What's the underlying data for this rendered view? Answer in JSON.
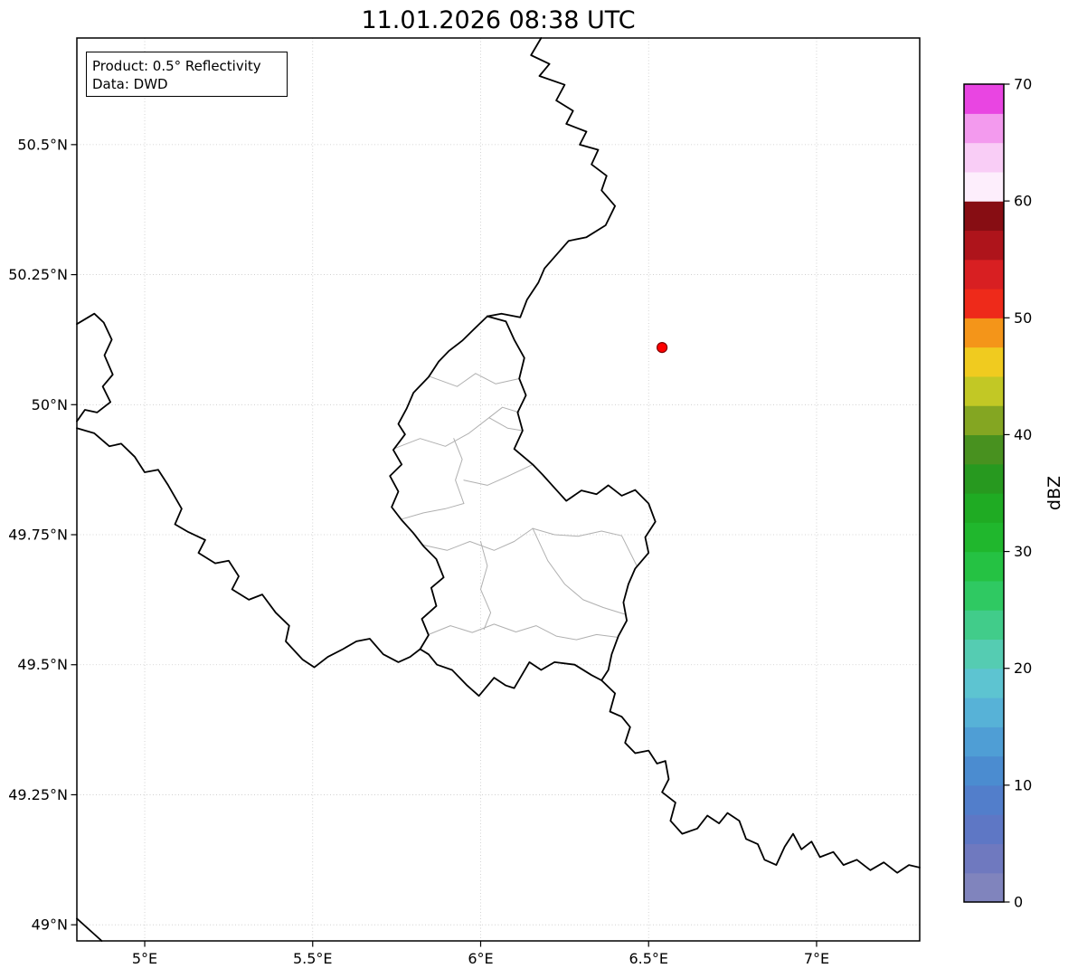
{
  "title": "11.01.2026 08:38 UTC",
  "annotation": {
    "line1": "Product: 0.5° Reflectivity",
    "line2": "Data: DWD"
  },
  "colorbar": {
    "label": "dBZ",
    "min": 0,
    "max": 70,
    "ticks": [
      0,
      10,
      20,
      30,
      40,
      50,
      60,
      70
    ],
    "segment_step_dbz": 2.5,
    "segment_colors": [
      "#8084bd",
      "#6f79bf",
      "#5e77c5",
      "#527ecb",
      "#4b8cd0",
      "#4f9ed5",
      "#57b2d7",
      "#5dc4d1",
      "#55ccb2",
      "#41cc8a",
      "#2fc962",
      "#25c243",
      "#20b72d",
      "#1fab23",
      "#27991f",
      "#48911f",
      "#84a622",
      "#c2c825",
      "#f0cb1f",
      "#f49519",
      "#ee2a1a",
      "#d81f22",
      "#ae141b",
      "#870d13",
      "#fdeefc",
      "#f9cdf6",
      "#f39aee",
      "#e945e2"
    ]
  },
  "map": {
    "extent": {
      "lon_min": 4.798,
      "lon_max": 7.307,
      "lat_min": 48.969,
      "lat_max": 50.705
    },
    "x_ticks": [
      {
        "value": 5.0,
        "label": "5°E"
      },
      {
        "value": 5.5,
        "label": "5.5°E"
      },
      {
        "value": 6.0,
        "label": "6°E"
      },
      {
        "value": 6.5,
        "label": "6.5°E"
      },
      {
        "value": 7.0,
        "label": "7°E"
      }
    ],
    "y_ticks": [
      {
        "value": 50.5,
        "label": "50.5°N"
      },
      {
        "value": 50.25,
        "label": "50.25°N"
      },
      {
        "value": 50.0,
        "label": "50°N"
      },
      {
        "value": 49.75,
        "label": "49.75°N"
      },
      {
        "value": 49.5,
        "label": "49.5°N"
      },
      {
        "value": 49.25,
        "label": "49.25°N"
      },
      {
        "value": 49.0,
        "label": "49°N"
      }
    ],
    "radar_marker": {
      "lon": 6.54,
      "lat": 50.11,
      "color": "#ff0000",
      "edge_color": "#7f0000"
    },
    "borders": {
      "country_lines": [
        {
          "name": "belgium-germany",
          "points": [
            [
              6.18,
              50.705
            ],
            [
              6.15,
              50.672
            ],
            [
              6.205,
              50.655
            ],
            [
              6.175,
              50.632
            ],
            [
              6.25,
              50.615
            ],
            [
              6.225,
              50.585
            ],
            [
              6.275,
              50.565
            ],
            [
              6.255,
              50.54
            ],
            [
              6.315,
              50.525
            ],
            [
              6.295,
              50.5
            ],
            [
              6.35,
              50.49
            ],
            [
              6.33,
              50.462
            ],
            [
              6.375,
              50.44
            ],
            [
              6.36,
              50.412
            ],
            [
              6.4,
              50.382
            ],
            [
              6.372,
              50.345
            ],
            [
              6.315,
              50.322
            ],
            [
              6.262,
              50.315
            ],
            [
              6.19,
              50.262
            ],
            [
              6.172,
              50.235
            ],
            [
              6.138,
              50.202
            ],
            [
              6.118,
              50.168
            ],
            [
              6.062,
              50.175
            ],
            [
              6.02,
              50.17
            ]
          ]
        },
        {
          "name": "luxembourg",
          "points": [
            [
              6.02,
              50.17
            ],
            [
              6.075,
              50.16
            ],
            [
              6.1,
              50.125
            ],
            [
              6.13,
              50.09
            ],
            [
              6.115,
              50.05
            ],
            [
              6.135,
              50.018
            ],
            [
              6.11,
              49.985
            ],
            [
              6.125,
              49.95
            ],
            [
              6.1,
              49.915
            ],
            [
              6.155,
              49.885
            ],
            [
              6.185,
              49.865
            ],
            [
              6.22,
              49.84
            ],
            [
              6.255,
              49.815
            ],
            [
              6.3,
              49.835
            ],
            [
              6.345,
              49.828
            ],
            [
              6.38,
              49.845
            ],
            [
              6.42,
              49.825
            ],
            [
              6.46,
              49.836
            ],
            [
              6.5,
              49.81
            ],
            [
              6.52,
              49.775
            ],
            [
              6.49,
              49.745
            ],
            [
              6.5,
              49.715
            ],
            [
              6.46,
              49.685
            ],
            [
              6.44,
              49.655
            ],
            [
              6.425,
              49.62
            ],
            [
              6.435,
              49.585
            ],
            [
              6.41,
              49.555
            ],
            [
              6.39,
              49.52
            ],
            [
              6.38,
              49.49
            ],
            [
              6.36,
              49.47
            ],
            [
              6.33,
              49.48
            ],
            [
              6.28,
              49.5
            ],
            [
              6.22,
              49.505
            ],
            [
              6.18,
              49.49
            ],
            [
              6.145,
              49.505
            ],
            [
              6.1,
              49.455
            ],
            [
              6.075,
              49.46
            ],
            [
              6.04,
              49.475
            ],
            [
              5.995,
              49.44
            ],
            [
              5.96,
              49.46
            ],
            [
              5.915,
              49.49
            ],
            [
              5.87,
              49.5
            ],
            [
              5.845,
              49.52
            ],
            [
              5.82,
              49.53
            ],
            [
              5.845,
              49.557
            ],
            [
              5.825,
              49.588
            ],
            [
              5.868,
              49.613
            ],
            [
              5.853,
              49.648
            ],
            [
              5.89,
              49.668
            ],
            [
              5.868,
              49.703
            ],
            [
              5.83,
              49.728
            ],
            [
              5.8,
              49.753
            ],
            [
              5.765,
              49.778
            ],
            [
              5.735,
              49.803
            ],
            [
              5.755,
              49.833
            ],
            [
              5.73,
              49.863
            ],
            [
              5.765,
              49.885
            ],
            [
              5.74,
              49.913
            ],
            [
              5.775,
              49.943
            ],
            [
              5.755,
              49.963
            ],
            [
              5.78,
              49.993
            ],
            [
              5.8,
              50.023
            ],
            [
              5.845,
              50.053
            ],
            [
              5.875,
              50.083
            ],
            [
              5.905,
              50.103
            ],
            [
              5.945,
              50.123
            ],
            [
              5.98,
              50.145
            ],
            [
              6.02,
              50.17
            ]
          ]
        },
        {
          "name": "france-givet-salient",
          "points": [
            [
              4.798,
              50.155
            ],
            [
              4.85,
              50.175
            ],
            [
              4.878,
              50.158
            ],
            [
              4.902,
              50.125
            ],
            [
              4.88,
              50.095
            ],
            [
              4.905,
              50.058
            ],
            [
              4.875,
              50.035
            ],
            [
              4.898,
              50.005
            ],
            [
              4.858,
              49.985
            ],
            [
              4.822,
              49.99
            ],
            [
              4.798,
              49.968
            ]
          ]
        },
        {
          "name": "belgium-france",
          "points": [
            [
              4.798,
              49.955
            ],
            [
              4.85,
              49.945
            ],
            [
              4.895,
              49.92
            ],
            [
              4.93,
              49.925
            ],
            [
              4.97,
              49.9
            ],
            [
              5.0,
              49.87
            ],
            [
              5.04,
              49.875
            ],
            [
              5.07,
              49.845
            ],
            [
              5.11,
              49.8
            ],
            [
              5.09,
              49.77
            ],
            [
              5.13,
              49.755
            ],
            [
              5.18,
              49.74
            ],
            [
              5.16,
              49.715
            ],
            [
              5.21,
              49.695
            ],
            [
              5.25,
              49.7
            ],
            [
              5.28,
              49.67
            ],
            [
              5.26,
              49.645
            ],
            [
              5.31,
              49.625
            ],
            [
              5.35,
              49.635
            ],
            [
              5.39,
              49.6
            ],
            [
              5.43,
              49.575
            ],
            [
              5.42,
              49.545
            ],
            [
              5.47,
              49.51
            ],
            [
              5.505,
              49.495
            ],
            [
              5.545,
              49.515
            ],
            [
              5.59,
              49.53
            ],
            [
              5.63,
              49.545
            ],
            [
              5.67,
              49.55
            ],
            [
              5.71,
              49.52
            ],
            [
              5.755,
              49.505
            ],
            [
              5.79,
              49.515
            ],
            [
              5.82,
              49.53
            ]
          ]
        },
        {
          "name": "france-germany",
          "points": [
            [
              6.36,
              49.47
            ],
            [
              6.4,
              49.445
            ],
            [
              6.385,
              49.41
            ],
            [
              6.42,
              49.4
            ],
            [
              6.445,
              49.38
            ],
            [
              6.43,
              49.35
            ],
            [
              6.46,
              49.33
            ],
            [
              6.5,
              49.335
            ],
            [
              6.525,
              49.31
            ],
            [
              6.55,
              49.315
            ],
            [
              6.56,
              49.28
            ],
            [
              6.54,
              49.255
            ],
            [
              6.58,
              49.235
            ],
            [
              6.565,
              49.2
            ],
            [
              6.6,
              49.175
            ],
            [
              6.645,
              49.185
            ],
            [
              6.675,
              49.21
            ],
            [
              6.71,
              49.195
            ],
            [
              6.735,
              49.215
            ],
            [
              6.77,
              49.2
            ],
            [
              6.79,
              49.165
            ],
            [
              6.825,
              49.155
            ],
            [
              6.845,
              49.125
            ],
            [
              6.88,
              49.115
            ],
            [
              6.905,
              49.15
            ],
            [
              6.93,
              49.175
            ],
            [
              6.955,
              49.145
            ],
            [
              6.985,
              49.16
            ],
            [
              7.01,
              49.13
            ],
            [
              7.05,
              49.14
            ],
            [
              7.08,
              49.115
            ],
            [
              7.12,
              49.125
            ],
            [
              7.16,
              49.105
            ],
            [
              7.2,
              49.12
            ],
            [
              7.24,
              49.1
            ],
            [
              7.275,
              49.115
            ],
            [
              7.307,
              49.11
            ]
          ]
        },
        {
          "name": "map-corner-segment",
          "points": [
            [
              4.798,
              49.012
            ],
            [
              4.872,
              48.969
            ]
          ]
        }
      ],
      "canton_lines": [
        [
          [
            5.845,
            50.055
          ],
          [
            5.93,
            50.035
          ],
          [
            5.985,
            50.06
          ],
          [
            6.045,
            50.04
          ],
          [
            6.115,
            50.05
          ]
        ],
        [
          [
            5.74,
            49.915
          ],
          [
            5.82,
            49.935
          ],
          [
            5.895,
            49.92
          ],
          [
            5.965,
            49.945
          ],
          [
            6.025,
            49.975
          ],
          [
            6.08,
            49.955
          ],
          [
            6.125,
            49.95
          ]
        ],
        [
          [
            6.025,
            49.975
          ],
          [
            6.065,
            49.995
          ],
          [
            6.115,
            49.985
          ]
        ],
        [
          [
            5.92,
            49.935
          ],
          [
            5.945,
            49.895
          ],
          [
            5.925,
            49.855
          ],
          [
            5.95,
            49.81
          ]
        ],
        [
          [
            5.95,
            49.855
          ],
          [
            6.02,
            49.845
          ],
          [
            6.08,
            49.862
          ],
          [
            6.155,
            49.885
          ]
        ],
        [
          [
            5.765,
            49.78
          ],
          [
            5.83,
            49.792
          ],
          [
            5.895,
            49.8
          ],
          [
            5.95,
            49.81
          ]
        ],
        [
          [
            5.83,
            49.73
          ],
          [
            5.9,
            49.72
          ],
          [
            5.968,
            49.737
          ],
          [
            6.04,
            49.72
          ],
          [
            6.1,
            49.737
          ],
          [
            6.155,
            49.762
          ]
        ],
        [
          [
            6.155,
            49.762
          ],
          [
            6.22,
            49.75
          ],
          [
            6.29,
            49.747
          ],
          [
            6.36,
            49.757
          ],
          [
            6.42,
            49.748
          ],
          [
            6.465,
            49.69
          ]
        ],
        [
          [
            6.0,
            49.737
          ],
          [
            6.02,
            49.69
          ],
          [
            6.0,
            49.645
          ],
          [
            6.03,
            49.6
          ],
          [
            6.01,
            49.568
          ]
        ],
        [
          [
            6.155,
            49.762
          ],
          [
            6.2,
            49.7
          ],
          [
            6.25,
            49.655
          ],
          [
            6.305,
            49.625
          ],
          [
            6.365,
            49.61
          ],
          [
            6.43,
            49.597
          ]
        ],
        [
          [
            5.845,
            49.558
          ],
          [
            5.91,
            49.575
          ],
          [
            5.975,
            49.562
          ],
          [
            6.04,
            49.578
          ],
          [
            6.105,
            49.563
          ],
          [
            6.165,
            49.575
          ],
          [
            6.225,
            49.555
          ],
          [
            6.285,
            49.548
          ],
          [
            6.345,
            49.558
          ],
          [
            6.405,
            49.553
          ]
        ]
      ]
    }
  }
}
